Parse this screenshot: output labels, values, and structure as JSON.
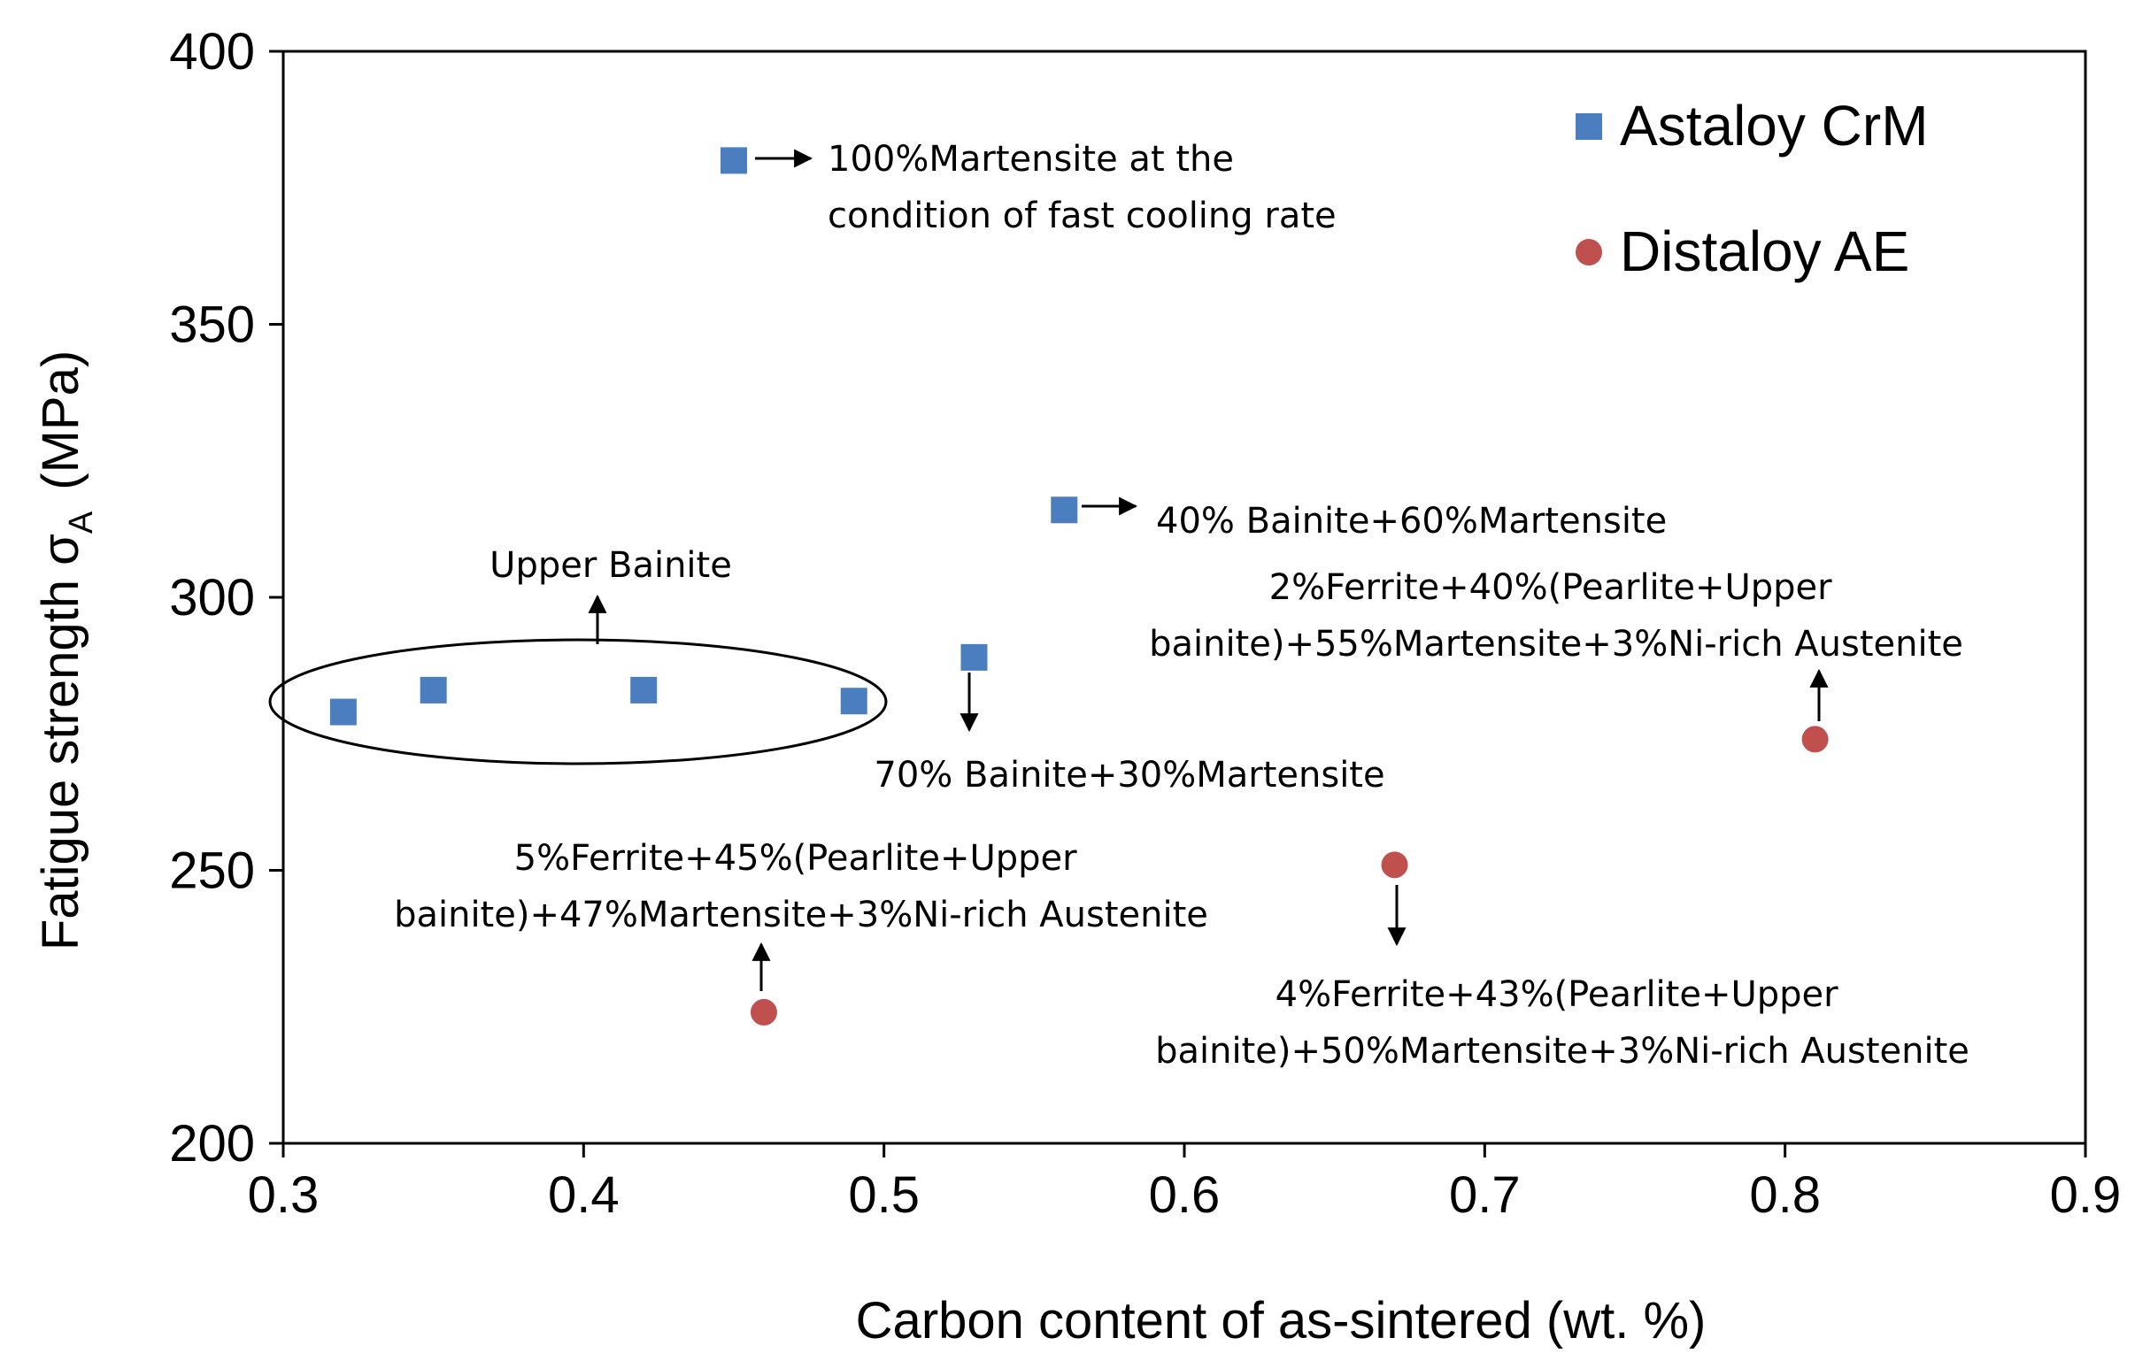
{
  "chart_data": {
    "type": "scatter",
    "xlabel": "Carbon content of as-sintered (wt. %)",
    "ylabel": {
      "prefix": "Fatigue strength σ",
      "subscript": "A",
      "suffix": "(MPa)"
    },
    "xlim": [
      0.3,
      0.9
    ],
    "ylim": [
      200,
      400
    ],
    "x_ticks": [
      0.3,
      0.4,
      0.5,
      0.6,
      0.7,
      0.8,
      0.9
    ],
    "x_tick_labels": [
      "0.3",
      "0.4",
      "0.5",
      "0.6",
      "0.7",
      "0.8",
      "0.9"
    ],
    "y_ticks": [
      200,
      250,
      300,
      350,
      400
    ],
    "y_tick_labels": [
      "200",
      "250",
      "300",
      "350",
      "400"
    ],
    "grid": false,
    "legend_position": "top-right",
    "series": [
      {
        "name": "Astaloy CrM",
        "marker": "square",
        "color": "#4a7ebf",
        "points": [
          {
            "x": 0.32,
            "y": 279
          },
          {
            "x": 0.35,
            "y": 283
          },
          {
            "x": 0.42,
            "y": 283
          },
          {
            "x": 0.45,
            "y": 380
          },
          {
            "x": 0.49,
            "y": 281
          },
          {
            "x": 0.53,
            "y": 289
          },
          {
            "x": 0.56,
            "y": 316
          }
        ]
      },
      {
        "name": "Distaloy AE",
        "marker": "circle",
        "color": "#c0504d",
        "points": [
          {
            "x": 0.46,
            "y": 224
          },
          {
            "x": 0.67,
            "y": 251
          },
          {
            "x": 0.81,
            "y": 274
          }
        ]
      }
    ],
    "annotations": [
      {
        "lines": [
          "100%Martensite at the",
          "condition of fast cooling rate"
        ]
      },
      {
        "lines": [
          "40% Bainite+60%Martensite"
        ]
      },
      {
        "lines": [
          "Upper Bainite"
        ]
      },
      {
        "lines": [
          "70% Bainite+30%Martensite"
        ]
      },
      {
        "lines": [
          "2%Ferrite+40%(Pearlite+Upper",
          "bainite)+55%Martensite+3%Ni-rich Austenite"
        ]
      },
      {
        "lines": [
          "5%Ferrite+45%(Pearlite+Upper",
          "bainite)+47%Martensite+3%Ni-rich Austenite"
        ]
      },
      {
        "lines": [
          "4%Ferrite+43%(Pearlite+Upper",
          "bainite)+50%Martensite+3%Ni-rich Austenite"
        ]
      }
    ]
  }
}
